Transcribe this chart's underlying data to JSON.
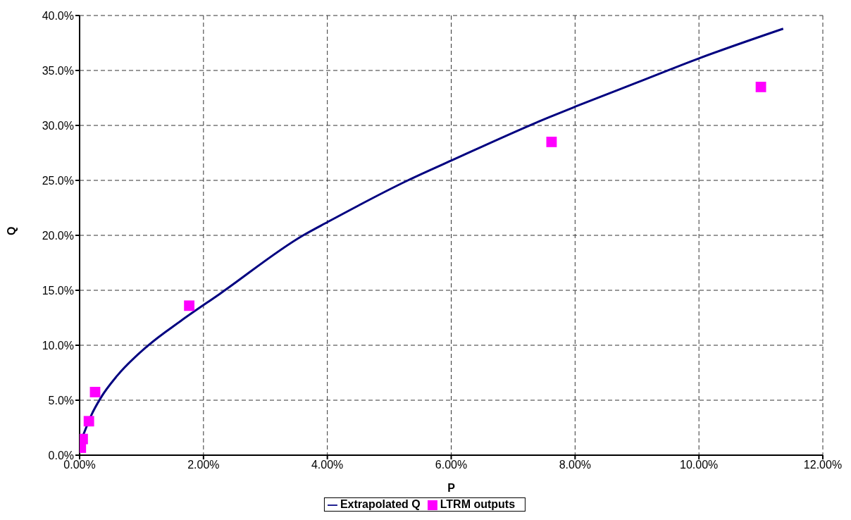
{
  "chart_data": {
    "type": "scatter",
    "xlabel": "P",
    "ylabel": "Q",
    "xlim": [
      0,
      12
    ],
    "xticks": [
      {
        "value": 0,
        "label": "0.00%"
      },
      {
        "value": 2,
        "label": "2.00%"
      },
      {
        "value": 4,
        "label": "4.00%"
      },
      {
        "value": 6,
        "label": "6.00%"
      },
      {
        "value": 8,
        "label": "8.00%"
      },
      {
        "value": 10,
        "label": "10.00%"
      },
      {
        "value": 12,
        "label": "12.00%"
      }
    ],
    "ylim": [
      0,
      40
    ],
    "yticks": [
      {
        "value": 0,
        "label": "0.0%"
      },
      {
        "value": 5,
        "label": "5.0%"
      },
      {
        "value": 10,
        "label": "10.0%"
      },
      {
        "value": 15,
        "label": "15.0%"
      },
      {
        "value": 20,
        "label": "20.0%"
      },
      {
        "value": 25,
        "label": "25.0%"
      },
      {
        "value": 30,
        "label": "30.0%"
      },
      {
        "value": 35,
        "label": "35.0%"
      },
      {
        "value": 40,
        "label": "40.0%"
      }
    ],
    "grid": true,
    "legend": "bottom",
    "series": [
      {
        "name": "Extrapolated Q",
        "type": "line",
        "color": "#000080",
        "marker": "none",
        "x": [
          0.06,
          0.19,
          0.34,
          0.61,
          1.1,
          1.63,
          2.27,
          3.61,
          4,
          5.3,
          6,
          7.56,
          8,
          9,
          10,
          11.36
        ],
        "values": [
          1.85,
          3.65,
          5.2,
          7.25,
          9.95,
          12.2,
          14.7,
          20,
          21.2,
          25,
          26.8,
          30.7,
          31.7,
          33.9,
          36.1,
          38.8
        ]
      },
      {
        "name": "LTRM outputs",
        "color": "#ff00ff",
        "marker": "square",
        "x": [
          0.02,
          0.05,
          0.15,
          0.25,
          1.77,
          7.62,
          11.0
        ],
        "values": [
          0.68,
          1.47,
          3.09,
          5.74,
          13.6,
          28.5,
          33.5
        ]
      }
    ]
  }
}
